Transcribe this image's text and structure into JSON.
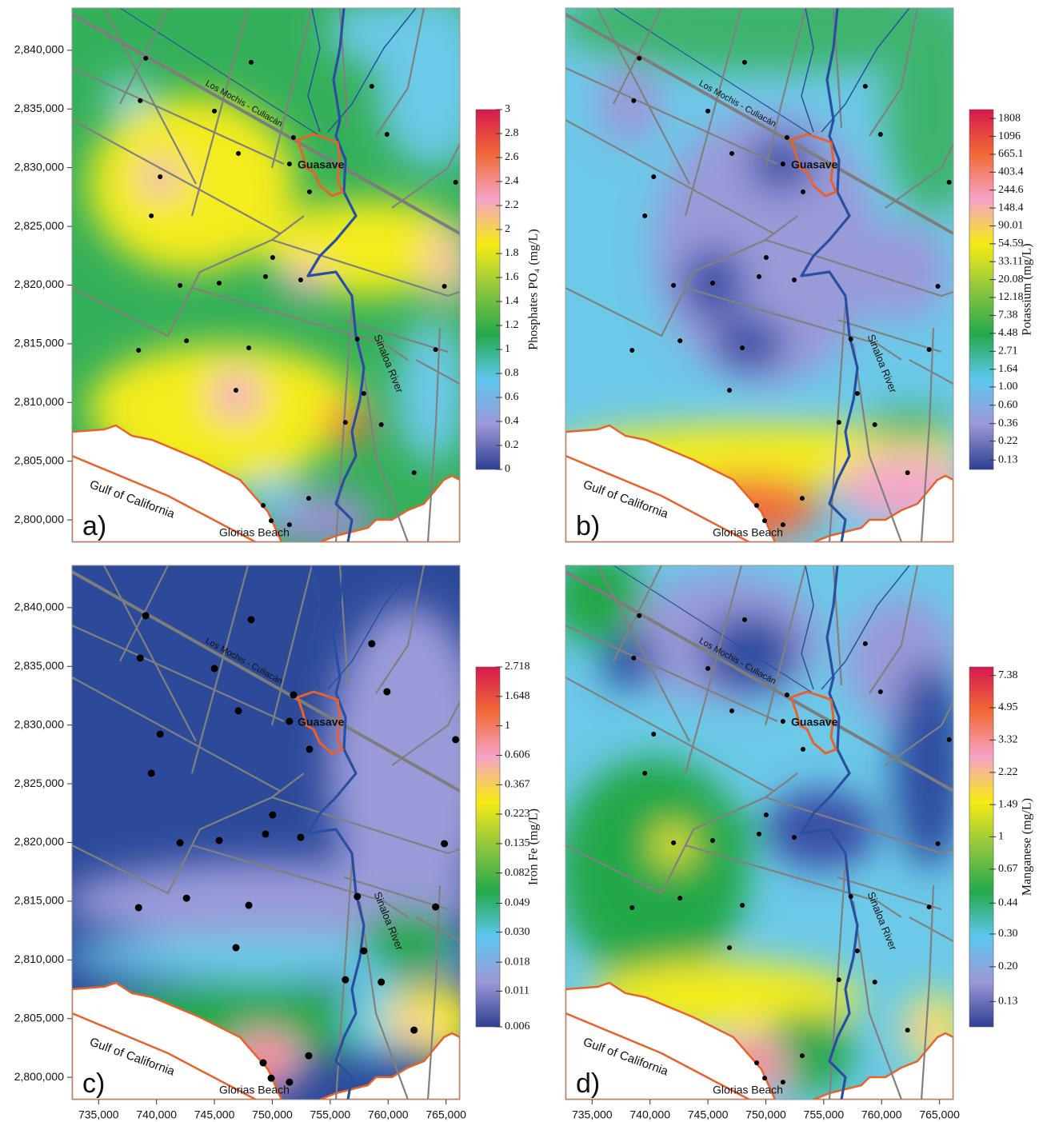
{
  "sample_sites": {
    "x": [
      739070,
      738590,
      745000,
      748170,
      747070,
      751830,
      751480,
      753210,
      740310,
      739550,
      759900,
      758590,
      765830,
      750030,
      749410,
      752450,
      742030,
      745410,
      764860,
      742590,
      738450,
      747970,
      757340,
      764100,
      757900,
      746860,
      756310,
      759410,
      762240,
      749210,
      749900,
      751480,
      753140
    ],
    "y": [
      2839320,
      2835710,
      2834820,
      2838980,
      2831210,
      2832570,
      2830320,
      2827940,
      2829230,
      2825900,
      2832840,
      2836930,
      2828760,
      2822350,
      2820720,
      2820440,
      2819970,
      2820170,
      2819900,
      2815260,
      2814450,
      2814650,
      2815400,
      2814510,
      2810770,
      2811040,
      2808310,
      2808110,
      2804020,
      2801230,
      2799930,
      2799590,
      2801840
    ]
  },
  "chart_data": [
    {
      "type": "contour_map",
      "panel_label": "a)",
      "colorbar_title": "Phosphates PO₄ (mg/L)",
      "colorbar_log": false,
      "colorbar_lim": [
        0,
        3
      ],
      "colorbar_ticks": [
        0,
        0.2,
        0.4,
        0.6,
        0.8,
        1,
        1.2,
        1.4,
        1.6,
        1.8,
        2,
        2.2,
        2.4,
        2.6,
        2.8,
        3
      ],
      "colors": [
        "#2e3f93",
        "#9c98d6",
        "#5ec7ef",
        "#23a94b",
        "#8dc63f",
        "#f6eb14",
        "#f5a3c7",
        "#f26a36",
        "#d7194f"
      ],
      "xlim": [
        732700,
        766200
      ],
      "ylim": [
        2798100,
        2843600
      ],
      "yticks": [
        {
          "value": 2800000,
          "label": "2,800,000"
        },
        {
          "value": 2805000,
          "label": "2,805,000"
        },
        {
          "value": 2810000,
          "label": "2,810,000"
        },
        {
          "value": 2815000,
          "label": "2,815,000"
        },
        {
          "value": 2820000,
          "label": "2,820,000"
        },
        {
          "value": 2825000,
          "label": "2,825,000"
        },
        {
          "value": 2830000,
          "label": "2,830,000"
        },
        {
          "value": 2835000,
          "label": "2,835,000"
        },
        {
          "value": 2840000,
          "label": "2,840,000"
        }
      ],
      "labels": {
        "highway": "Los Mochis - Culiacán",
        "city": "Guasave",
        "river": "Sinaloa River",
        "sea": "Gulf of California",
        "beach": "Glorias Beach"
      }
    },
    {
      "type": "contour_map",
      "panel_label": "b)",
      "colorbar_title": "Potassium (mg/L)",
      "colorbar_log": true,
      "colorbar_lim": [
        0.1,
        2320
      ],
      "colorbar_ticks": [
        1808,
        1096,
        665.1,
        403.4,
        244.6,
        148.4,
        90.01,
        54.59,
        33.11,
        20.08,
        12.18,
        7.38,
        4.48,
        2.71,
        1.64,
        {
          "value": 1,
          "label": "1.00"
        },
        {
          "value": 0.6,
          "label": "0.60"
        },
        0.36,
        0.22,
        0.13
      ],
      "colors": [
        "#2e3f93",
        "#9c98d6",
        "#5ec7ef",
        "#23a94b",
        "#8dc63f",
        "#f6eb14",
        "#f5a3c7",
        "#f26a36",
        "#d7194f"
      ],
      "xlim": [
        732700,
        766200
      ],
      "ylim": [
        2798100,
        2843600
      ],
      "labels": {
        "highway": "Los Mochis - Culiacán",
        "city": "Guasave",
        "river": "Sinaloa River",
        "sea": "Gulf of California",
        "beach": "Glorias Beach"
      }
    },
    {
      "type": "contour_map",
      "panel_label": "c)",
      "colorbar_title": "Iron Fe (mg/L)",
      "colorbar_log": true,
      "colorbar_lim": [
        0.006,
        2.718
      ],
      "colorbar_ticks": [
        2.718,
        1.648,
        1,
        0.606,
        0.367,
        0.223,
        0.135,
        0.082,
        0.049,
        {
          "value": 0.03,
          "label": "0.030"
        },
        0.018,
        0.011,
        0.006
      ],
      "colors": [
        "#2e3f93",
        "#9c98d6",
        "#5ec7ef",
        "#23a94b",
        "#8dc63f",
        "#f6eb14",
        "#f5a3c7",
        "#f26a36",
        "#d7194f"
      ],
      "xlim": [
        732700,
        766200
      ],
      "ylim": [
        2798100,
        2843600
      ],
      "yticks": [
        {
          "value": 2800000,
          "label": "2,800,000"
        },
        {
          "value": 2805000,
          "label": "2,805,000"
        },
        {
          "value": 2810000,
          "label": "2,810,000"
        },
        {
          "value": 2815000,
          "label": "2,815,000"
        },
        {
          "value": 2820000,
          "label": "2,820,000"
        },
        {
          "value": 2825000,
          "label": "2,825,000"
        },
        {
          "value": 2830000,
          "label": "2,830,000"
        },
        {
          "value": 2835000,
          "label": "2,835,000"
        },
        {
          "value": 2840000,
          "label": "2,840,000"
        }
      ],
      "xticks": [
        {
          "value": 735000,
          "label": "735,000"
        },
        {
          "value": 740000,
          "label": "740,000"
        },
        {
          "value": 745000,
          "label": "745,000"
        },
        {
          "value": 750000,
          "label": "750,000"
        },
        {
          "value": 755000,
          "label": "755,000"
        },
        {
          "value": 760000,
          "label": "760,000"
        },
        {
          "value": 765000,
          "label": "765,000"
        }
      ],
      "labels": {
        "highway": "Los Mochis - Culiacán",
        "city": "Guasave",
        "river": "Sinaloa River",
        "sea": "Gulf of California",
        "beach": "Glorias Beach"
      }
    },
    {
      "type": "contour_map",
      "panel_label": "d)",
      "colorbar_title": "Manganese (mg/L)",
      "colorbar_log": true,
      "colorbar_lim": [
        0.095,
        8.2
      ],
      "colorbar_ticks": [
        7.38,
        4.95,
        3.32,
        2.22,
        1.49,
        1,
        0.67,
        0.44,
        {
          "value": 0.3,
          "label": "0.30"
        },
        {
          "value": 0.2,
          "label": "0.20"
        },
        0.13
      ],
      "colors": [
        "#2e3f93",
        "#9c98d6",
        "#5ec7ef",
        "#23a94b",
        "#8dc63f",
        "#f6eb14",
        "#f5a3c7",
        "#f26a36",
        "#d7194f"
      ],
      "xlim": [
        732700,
        766200
      ],
      "ylim": [
        2798100,
        2843600
      ],
      "xticks": [
        {
          "value": 735000,
          "label": "735,000"
        },
        {
          "value": 740000,
          "label": "740,000"
        },
        {
          "value": 745000,
          "label": "745,000"
        },
        {
          "value": 750000,
          "label": "750,000"
        },
        {
          "value": 755000,
          "label": "755,000"
        },
        {
          "value": 760000,
          "label": "760,000"
        },
        {
          "value": 765000,
          "label": "765,000"
        }
      ],
      "labels": {
        "highway": "Los Mochis - Culiacán",
        "city": "Guasave",
        "river": "Sinaloa River",
        "sea": "Gulf of California",
        "beach": "Glorias Beach"
      }
    }
  ]
}
